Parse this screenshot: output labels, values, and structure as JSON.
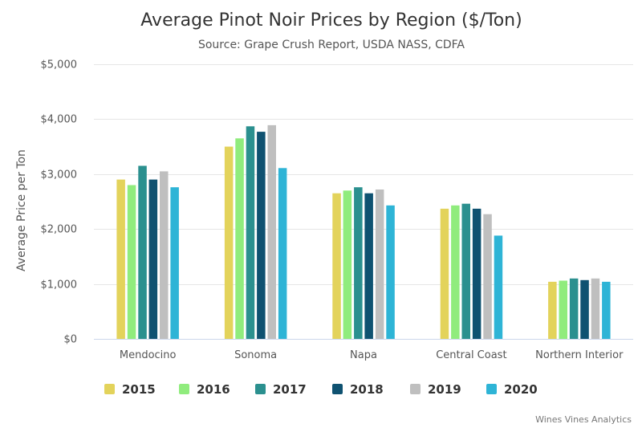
{
  "colors": {
    "2015": "#e3d35b",
    "2016": "#90ec7d",
    "2017": "#2b908f",
    "2018": "#0f5271",
    "2019": "#bfbfbf",
    "2020": "#2eb4d6"
  },
  "chart_data": {
    "type": "bar",
    "title": "Average Pinot Noir Prices by Region ($/Ton)",
    "subtitle": "Source: Grape Crush Report, USDA NASS, CDFA",
    "ylabel": "Average Price per Ton",
    "xlabel": "",
    "ylim": [
      0,
      5000
    ],
    "yticks": [
      {
        "value": 0,
        "label": "$0"
      },
      {
        "value": 1000,
        "label": "$1,000"
      },
      {
        "value": 2000,
        "label": "$2,000"
      },
      {
        "value": 3000,
        "label": "$3,000"
      },
      {
        "value": 4000,
        "label": "$4,000"
      },
      {
        "value": 5000,
        "label": "$5,000"
      }
    ],
    "grid": true,
    "legend_position": "bottom",
    "categories": [
      "Mendocino",
      "Sonoma",
      "Napa",
      "Central Coast",
      "Northern Interior"
    ],
    "series": [
      {
        "name": "2015",
        "values": [
          2900,
          3500,
          2650,
          2370,
          1040
        ]
      },
      {
        "name": "2016",
        "values": [
          2800,
          3650,
          2700,
          2430,
          1060
        ]
      },
      {
        "name": "2017",
        "values": [
          3150,
          3870,
          2760,
          2460,
          1100
        ]
      },
      {
        "name": "2018",
        "values": [
          2900,
          3770,
          2650,
          2370,
          1070
        ]
      },
      {
        "name": "2019",
        "values": [
          3050,
          3890,
          2720,
          2270,
          1100
        ]
      },
      {
        "name": "2020",
        "values": [
          2760,
          3110,
          2430,
          1880,
          1040
        ]
      }
    ],
    "credit": "Wines Vines Analytics"
  }
}
